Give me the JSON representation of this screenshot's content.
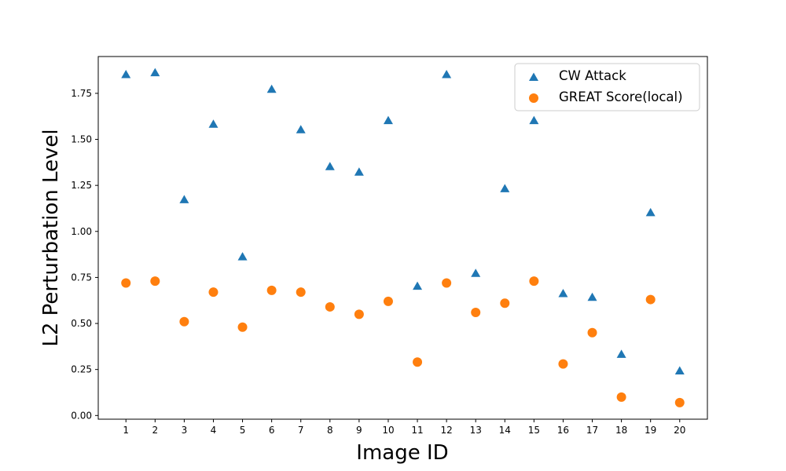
{
  "chart_data": {
    "type": "scatter",
    "xlabel": "Image ID",
    "ylabel": "L2 Perturbation Level",
    "x": [
      1,
      2,
      3,
      4,
      5,
      6,
      7,
      8,
      9,
      10,
      11,
      12,
      13,
      14,
      15,
      16,
      17,
      18,
      19,
      20
    ],
    "x_ticks": [
      "1",
      "2",
      "3",
      "4",
      "5",
      "6",
      "7",
      "8",
      "9",
      "10",
      "11",
      "12",
      "13",
      "14",
      "15",
      "16",
      "17",
      "18",
      "19",
      "20"
    ],
    "y_ticks": [
      "0.00",
      "0.25",
      "0.50",
      "0.75",
      "1.00",
      "1.25",
      "1.50",
      "1.75"
    ],
    "xlim": [
      0.05,
      20.95
    ],
    "ylim": [
      -0.02,
      1.95
    ],
    "grid": false,
    "legend_position": "top-right",
    "series": [
      {
        "name": "CW Attack",
        "marker": "triangle",
        "color": "#1f77b4",
        "values": [
          1.85,
          1.86,
          1.17,
          1.58,
          0.86,
          1.77,
          1.55,
          1.35,
          1.32,
          1.6,
          0.7,
          1.85,
          0.77,
          1.23,
          1.6,
          0.66,
          0.64,
          0.33,
          1.1,
          0.24
        ]
      },
      {
        "name": "GREAT Score(local)",
        "marker": "circle",
        "color": "#ff7f0e",
        "values": [
          0.72,
          0.73,
          0.51,
          0.67,
          0.48,
          0.68,
          0.67,
          0.59,
          0.55,
          0.62,
          0.29,
          0.72,
          0.56,
          0.61,
          0.73,
          0.28,
          0.45,
          0.1,
          0.63,
          0.07
        ]
      }
    ]
  }
}
